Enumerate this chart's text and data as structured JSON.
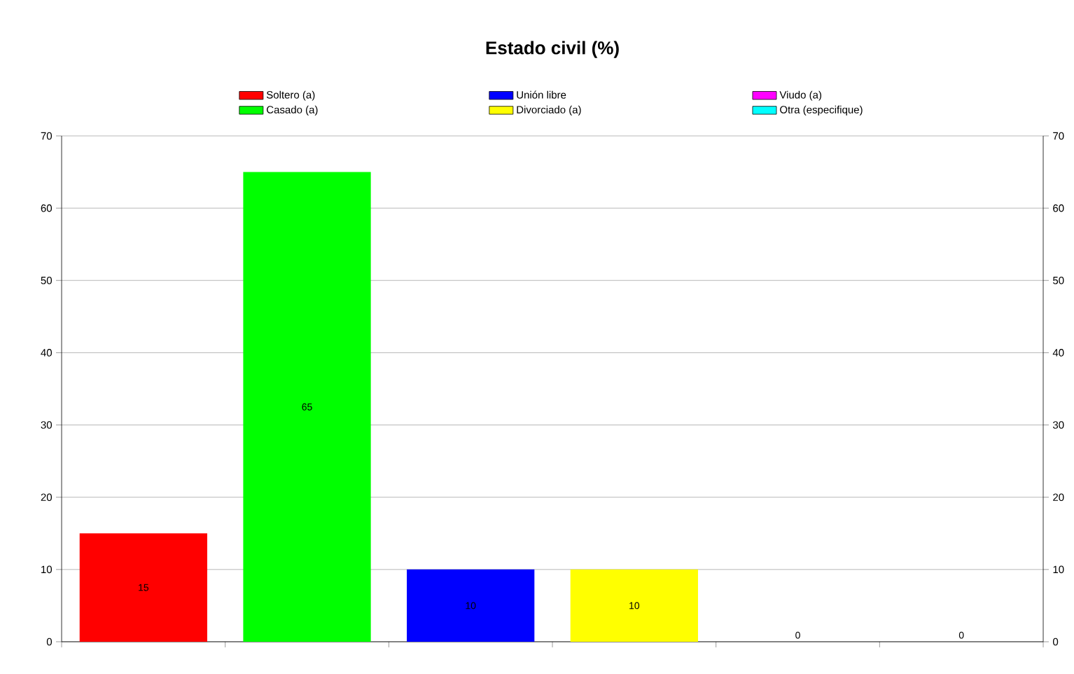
{
  "chart_data": {
    "type": "bar",
    "title": "Estado civil (%)",
    "categories": [
      null,
      null,
      null,
      null,
      null,
      null
    ],
    "series": [
      {
        "name": "Soltero (a)",
        "color": "#ff0000",
        "values": [
          15,
          null,
          null,
          null,
          null,
          null
        ]
      },
      {
        "name": "Casado (a)",
        "color": "#00ff00",
        "values": [
          null,
          65,
          null,
          null,
          null,
          null
        ]
      },
      {
        "name": "Unión libre",
        "color": "#0000ff",
        "values": [
          null,
          null,
          10,
          null,
          null,
          null
        ]
      },
      {
        "name": "Divorciado (a)",
        "color": "#ffff00",
        "values": [
          null,
          null,
          null,
          10,
          null,
          null
        ]
      },
      {
        "name": "Viudo (a)",
        "color": "#ff00ff",
        "values": [
          null,
          null,
          null,
          null,
          0,
          null
        ]
      },
      {
        "name": "Otra (especifique)",
        "color": "#00ffff",
        "values": [
          null,
          null,
          null,
          null,
          null,
          0
        ]
      }
    ],
    "ylim": [
      0,
      70
    ],
    "yticks": [
      0,
      10,
      20,
      30,
      40,
      50,
      60,
      70
    ],
    "y2lim": [
      0,
      70
    ],
    "y2ticks": [
      0,
      10,
      20,
      30,
      40,
      50,
      60,
      70
    ],
    "grid": "y",
    "legend": "top",
    "data_labels": true
  }
}
